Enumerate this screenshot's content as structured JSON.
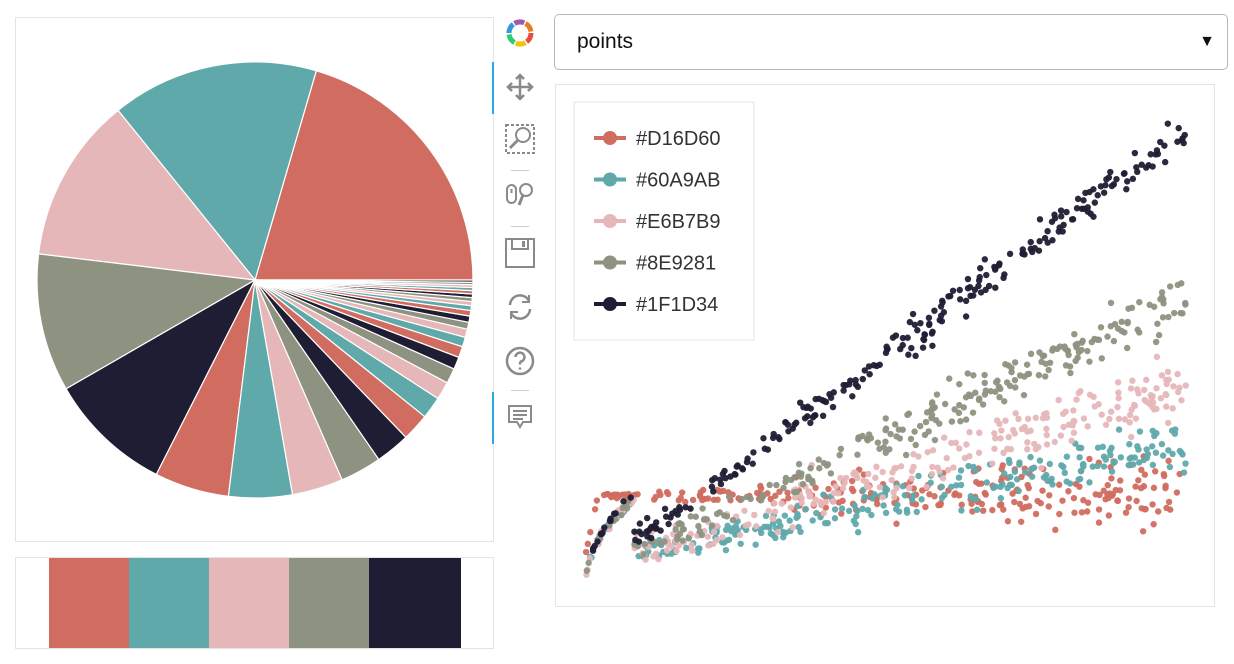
{
  "toolbar": {
    "tools": [
      "bokeh-logo",
      "pan",
      "box-zoom",
      "wheel-zoom",
      "save",
      "reset",
      "help",
      "hover"
    ]
  },
  "select": {
    "value": "points",
    "caret": "▼"
  },
  "palette": [
    "#D16D60",
    "#60A9AB",
    "#E6B7B9",
    "#8E9281",
    "#1F1D34"
  ],
  "chart_data": [
    {
      "type": "pie",
      "title": "",
      "colors_cycle": [
        "#D16D60",
        "#60A9AB",
        "#E6B7B9",
        "#8E9281",
        "#1F1D34"
      ],
      "values": [
        20,
        15,
        12,
        10,
        9,
        5.4,
        4.6,
        3.7,
        3.0,
        2.5,
        2.0,
        1.6,
        1.3,
        1.1,
        0.9,
        0.8,
        0.7,
        0.6,
        0.5,
        0.45,
        0.4,
        0.35,
        0.3,
        0.28,
        0.26,
        0.24,
        0.22,
        0.2,
        0.18,
        0.16
      ]
    },
    {
      "type": "bar",
      "title": "",
      "categories": [
        "#D16D60",
        "#60A9AB",
        "#E6B7B9",
        "#8E9281",
        "#1F1D34"
      ],
      "values": [
        1,
        1,
        1,
        1,
        1
      ]
    },
    {
      "type": "scatter",
      "title": "",
      "xlabel": "",
      "ylabel": "",
      "xlim": [
        0,
        1
      ],
      "ylim": [
        0,
        1
      ],
      "grid": false,
      "legend_position": "top-left",
      "series": [
        {
          "name": "#D16D60",
          "color": "#D16D60",
          "y0": 0.18,
          "slope": 0.0,
          "spread": 0.06
        },
        {
          "name": "#60A9AB",
          "color": "#60A9AB",
          "y0": 0.12,
          "slope": 0.16,
          "spread": 0.05
        },
        {
          "name": "#E6B7B9",
          "color": "#E6B7B9",
          "y0": 0.08,
          "slope": 0.33,
          "spread": 0.06
        },
        {
          "name": "#8E9281",
          "color": "#8E9281",
          "y0": 0.04,
          "slope": 0.55,
          "spread": 0.05
        },
        {
          "name": "#1F1D34",
          "color": "#1F1D34",
          "y0": 0.0,
          "slope": 0.95,
          "spread": 0.04
        }
      ],
      "legend": [
        "#D16D60",
        "#60A9AB",
        "#E6B7B9",
        "#8E9281",
        "#1F1D34"
      ]
    }
  ]
}
